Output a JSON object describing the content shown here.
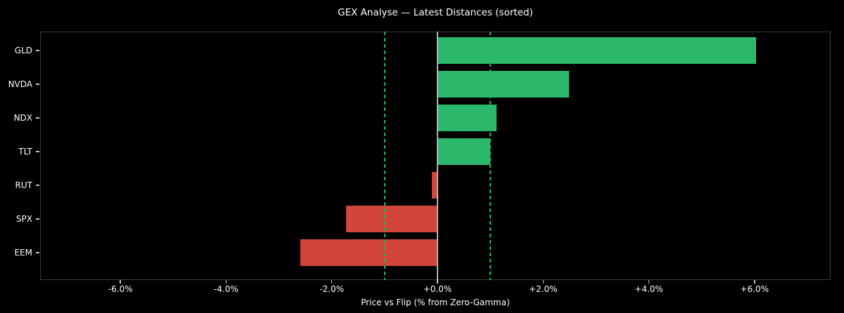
{
  "chart_data": {
    "type": "bar",
    "orientation": "horizontal",
    "title": "GEX Analyse — Latest Distances (sorted)",
    "xlabel": "Price vs Flip (% from Zero-Gamma)",
    "categories": [
      "GLD",
      "NVDA",
      "NDX",
      "TLT",
      "RUT",
      "SPX",
      "EEM"
    ],
    "values": [
      6.03,
      2.49,
      1.12,
      1.0,
      -0.11,
      -1.73,
      -2.59
    ],
    "value_unit": "%",
    "xlim": [
      -7.52,
      7.44
    ],
    "grid": false,
    "legend": false,
    "x_ticks": [
      {
        "value": -6,
        "label": "-6.0%"
      },
      {
        "value": -4,
        "label": "-4.0%"
      },
      {
        "value": -2,
        "label": "-2.0%"
      },
      {
        "value": 0,
        "label": "+0.0%"
      },
      {
        "value": 2,
        "label": "+2.0%"
      },
      {
        "value": 4,
        "label": "+4.0%"
      },
      {
        "value": 6,
        "label": "+6.0%"
      }
    ],
    "reference_lines": [
      {
        "value": -1.0,
        "style": "dashed",
        "color": "#1db95c"
      },
      {
        "value": 1.0,
        "style": "dashed",
        "color": "#1db95c"
      },
      {
        "value": 0.0,
        "style": "solid",
        "color": "#b3b3b3"
      }
    ],
    "colors": {
      "positive_bar": "#2bb86a",
      "negative_bar": "#d1453b",
      "background": "#000000",
      "text": "#ffffff",
      "spine": "#3d3d3d",
      "tick": "#c8c8c8"
    }
  }
}
